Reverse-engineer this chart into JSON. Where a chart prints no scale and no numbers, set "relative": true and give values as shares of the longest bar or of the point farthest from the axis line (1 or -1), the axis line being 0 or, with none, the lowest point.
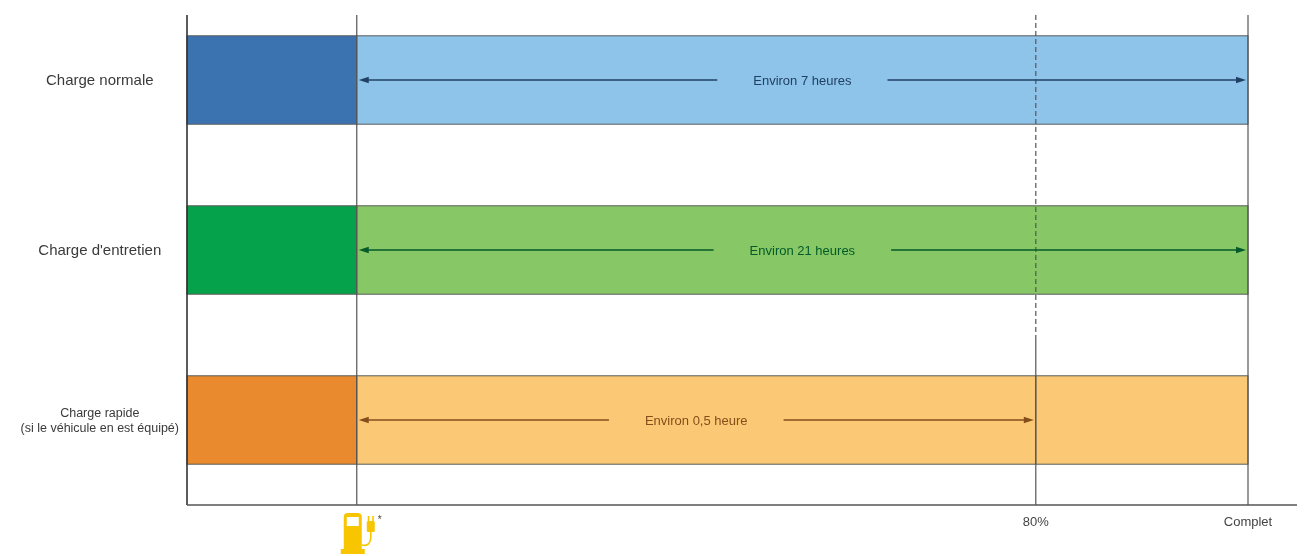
{
  "chart_data": {
    "type": "bar",
    "orientation": "horizontal",
    "stacked": true,
    "relative": true,
    "categories": [
      "Charge normale",
      "Charge d'entretien",
      "Charge rapide\n(si le véhicule en est équipé)"
    ],
    "series": [
      {
        "colors": [
          "#3b73b1",
          "#05a14b",
          "#e98a2e"
        ],
        "values": [
          0.16,
          0.16,
          0.16
        ]
      },
      {
        "colors": [
          "#8fc4ea",
          "#87c765",
          "#fbc976"
        ],
        "values": [
          0.84,
          0.84,
          0.64
        ]
      },
      {
        "colors": [
          null,
          null,
          "#fbc976"
        ],
        "values": [
          null,
          null,
          0.2
        ]
      }
    ],
    "ref_lines": [
      {
        "axis": "x",
        "value": 0.16
      },
      {
        "axis": "x",
        "value": 0.8,
        "label": "80%",
        "line_style": "dashed"
      },
      {
        "axis": "x",
        "value": 1,
        "label": "Complet"
      }
    ],
    "annotations": [
      "Environ 7 heures",
      "Environ 21 heures",
      "Environ 0,5 heure",
      "*"
    ]
  }
}
